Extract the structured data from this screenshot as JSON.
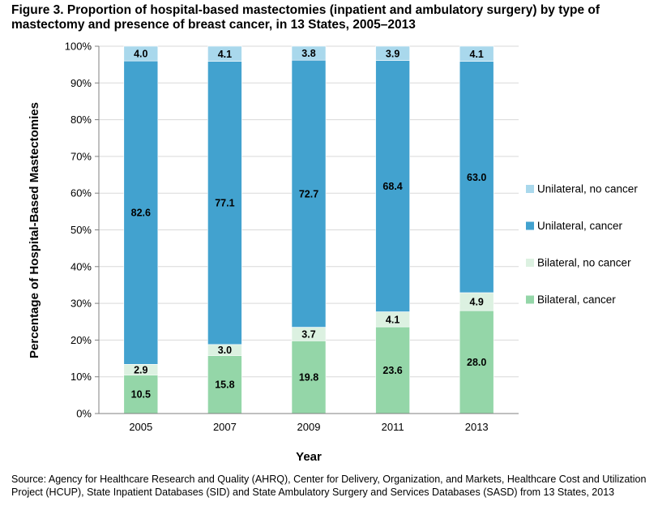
{
  "figure_title": "Figure 3. Proportion of hospital-based mastectomies (inpatient and ambulatory surgery) by type of mastectomy and presence of breast cancer, in 13 States, 2005–2013",
  "source_note": "Source: Agency for Healthcare Research and Quality (AHRQ), Center for Delivery, Organization, and Markets, Healthcare Cost and Utilization Project (HCUP), State Inpatient Databases (SID) and State Ambulatory Surgery and Services Databases (SASD) from 13 States, 2013",
  "chart_data": {
    "type": "bar",
    "stacked": true,
    "title": "Figure 3. Proportion of hospital-based mastectomies (inpatient and ambulatory surgery) by type of mastectomy and presence of breast cancer, in 13 States, 2005–2013",
    "xlabel": "Year",
    "ylabel": "Percentage of Hospital-Based Mastectomies",
    "ylim": [
      0,
      100
    ],
    "yticks": [
      "0%",
      "10%",
      "20%",
      "30%",
      "40%",
      "50%",
      "60%",
      "70%",
      "80%",
      "90%",
      "100%"
    ],
    "categories": [
      "2005",
      "2007",
      "2009",
      "2011",
      "2013"
    ],
    "legend_position": "right",
    "series": [
      {
        "name": "Bilateral, cancer",
        "color": "#94d6a8",
        "values": [
          10.5,
          15.8,
          19.8,
          23.6,
          28.0
        ],
        "labels": [
          "10.5",
          "15.8",
          "19.8",
          "23.6",
          "28.0"
        ]
      },
      {
        "name": "Bilateral, no cancer",
        "color": "#dcf1e1",
        "values": [
          2.9,
          3.0,
          3.7,
          4.1,
          4.9
        ],
        "labels": [
          "2.9",
          "3.0",
          "3.7",
          "4.1",
          "4.9"
        ]
      },
      {
        "name": "Unilateral, cancer",
        "color": "#42a2cf",
        "values": [
          82.6,
          77.1,
          72.7,
          68.4,
          63.0
        ],
        "labels": [
          "82.6",
          "77.1",
          "72.7",
          "68.4",
          "63.0"
        ]
      },
      {
        "name": "Unilateral, no cancer",
        "color": "#a9d8ec",
        "values": [
          4.0,
          4.1,
          3.8,
          3.9,
          4.1
        ],
        "labels": [
          "4.0",
          "4.1",
          "3.8",
          "3.9",
          "4.1"
        ]
      }
    ]
  }
}
